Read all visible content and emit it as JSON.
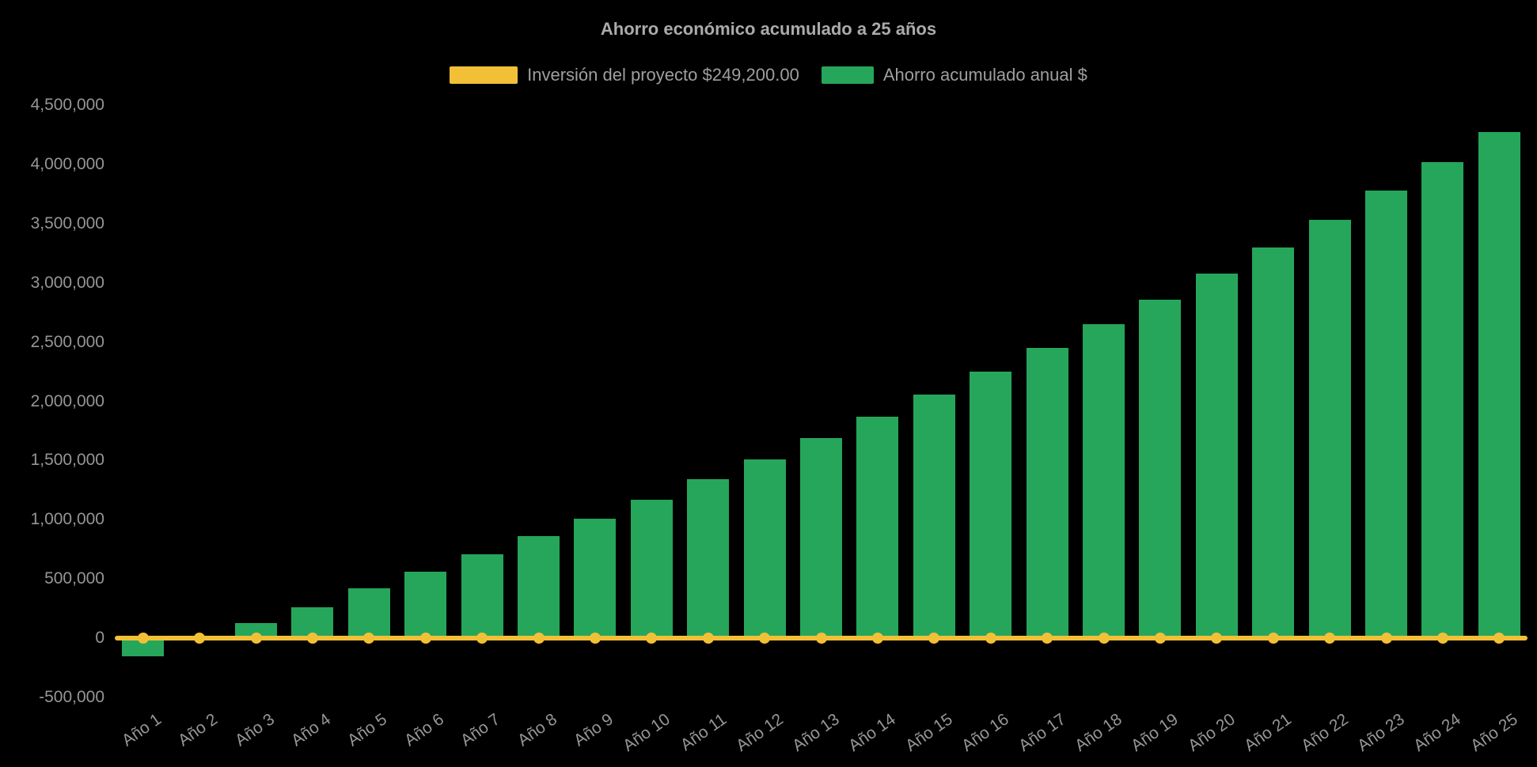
{
  "title": "Ahorro económico acumulado a 25 años",
  "colors": {
    "background": "#000000",
    "bar": "#26a65b",
    "line": "#f2c037",
    "title_text": "#ababab",
    "tick_text": "#969696",
    "legend_text": "#9f9f9f"
  },
  "legend": [
    {
      "id": "investment-line",
      "label": "Inversión del proyecto $249,200.00",
      "color": "#f2c037"
    },
    {
      "id": "accumulated-savings",
      "label": "Ahorro acumulado anual $",
      "color": "#26a65b"
    }
  ],
  "chart_data": {
    "type": "bar",
    "title": "Ahorro económico acumulado a 25 años",
    "categories": [
      "Año 1",
      "Año 2",
      "Año 3",
      "Año 4",
      "Año 5",
      "Año 6",
      "Año 7",
      "Año 8",
      "Año 9",
      "Año 10",
      "Año 11",
      "Año 12",
      "Año 13",
      "Año 14",
      "Año 15",
      "Año 16",
      "Año 17",
      "Año 18",
      "Año 19",
      "Año 20",
      "Año 21",
      "Año 22",
      "Año 23",
      "Año 24",
      "Año 25"
    ],
    "series": [
      {
        "name": "Ahorro acumulado anual $",
        "type": "bar",
        "color": "#26a65b",
        "values": [
          -150000,
          0,
          130000,
          260000,
          420000,
          560000,
          710000,
          860000,
          1010000,
          1170000,
          1340000,
          1510000,
          1690000,
          1870000,
          2060000,
          2250000,
          2450000,
          2650000,
          2860000,
          3080000,
          3300000,
          3530000,
          3780000,
          4020000,
          4270000
        ]
      },
      {
        "name": "Inversión del proyecto $249,200.00",
        "type": "line",
        "color": "#f2c037",
        "investment_amount_label": "$249,200.00",
        "values": [
          0,
          0,
          0,
          0,
          0,
          0,
          0,
          0,
          0,
          0,
          0,
          0,
          0,
          0,
          0,
          0,
          0,
          0,
          0,
          0,
          0,
          0,
          0,
          0,
          0
        ]
      }
    ],
    "xlabel": "",
    "ylabel": "",
    "ylim": [
      -500000,
      4500000
    ],
    "ytick_step": 500000,
    "ytick_labels": [
      "4,500,000",
      "4,000,000",
      "3,500,000",
      "3,000,000",
      "2,500,000",
      "2,000,000",
      "1,500,000",
      "1,000,000",
      "500,000",
      "0",
      "-500,000"
    ],
    "grid": false,
    "legend_position": "top"
  }
}
